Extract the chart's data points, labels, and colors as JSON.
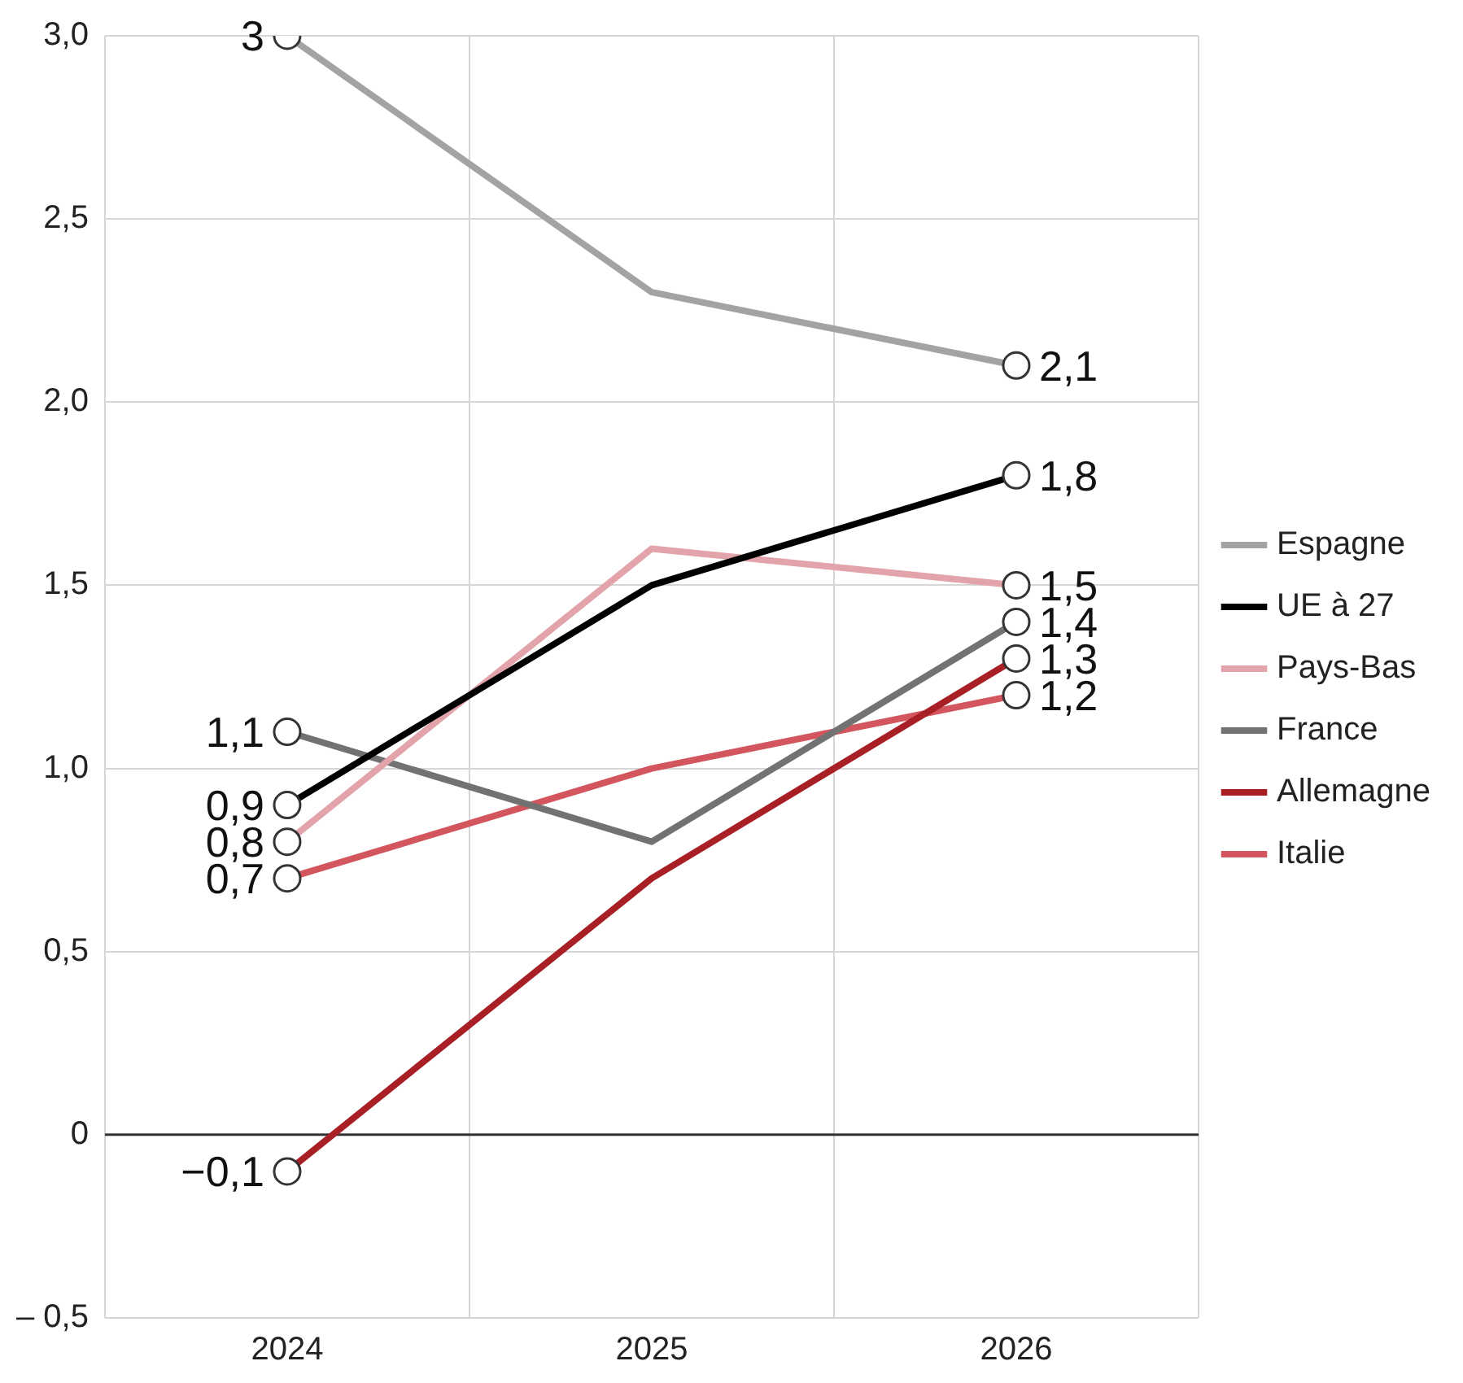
{
  "chart_data": {
    "type": "line",
    "categories": [
      "2024",
      "2025",
      "2026"
    ],
    "series": [
      {
        "name": "Espagne",
        "color": "#a3a3a3",
        "values": [
          3,
          2.3,
          2.1
        ],
        "value_labels": [
          "3",
          null,
          "2,1"
        ]
      },
      {
        "name": "UE à 27",
        "color": "#000000",
        "values": [
          0.9,
          1.5,
          1.8
        ],
        "value_labels": [
          "0,9",
          null,
          "1,8"
        ]
      },
      {
        "name": "Pays-Bas",
        "color": "#e2a3aa",
        "values": [
          0.8,
          1.6,
          1.5
        ],
        "value_labels": [
          "0,8",
          null,
          "1,5"
        ]
      },
      {
        "name": "France",
        "color": "#727272",
        "values": [
          1.1,
          0.8,
          1.4
        ],
        "value_labels": [
          "1,1",
          null,
          "1,4"
        ]
      },
      {
        "name": "Allemagne",
        "color": "#a81f26",
        "values": [
          -0.1,
          0.7,
          1.3
        ],
        "value_labels": [
          "−0,1",
          null,
          "1,3"
        ]
      },
      {
        "name": "Italie",
        "color": "#d3555d",
        "values": [
          0.7,
          1.0,
          1.2
        ],
        "value_labels": [
          "0,7",
          null,
          "1,2"
        ]
      }
    ],
    "ylim": [
      -0.5,
      3
    ],
    "yticks": [
      {
        "value": -0.5,
        "label": "– 0,5"
      },
      0,
      {
        "value": 0.5,
        "label": "0,5"
      },
      {
        "value": 1,
        "label": "1,0"
      },
      {
        "value": 1.5,
        "label": "1,5"
      },
      {
        "value": 2,
        "label": "2,0"
      },
      {
        "value": 2.5,
        "label": "2,5"
      },
      {
        "value": 3,
        "label": "3,0"
      }
    ],
    "ref_lines": [
      {
        "axis": "y",
        "value": 0,
        "color": "#333333"
      }
    ],
    "grid": true,
    "legend": "right",
    "marker": "circle",
    "line_style": "solid"
  }
}
